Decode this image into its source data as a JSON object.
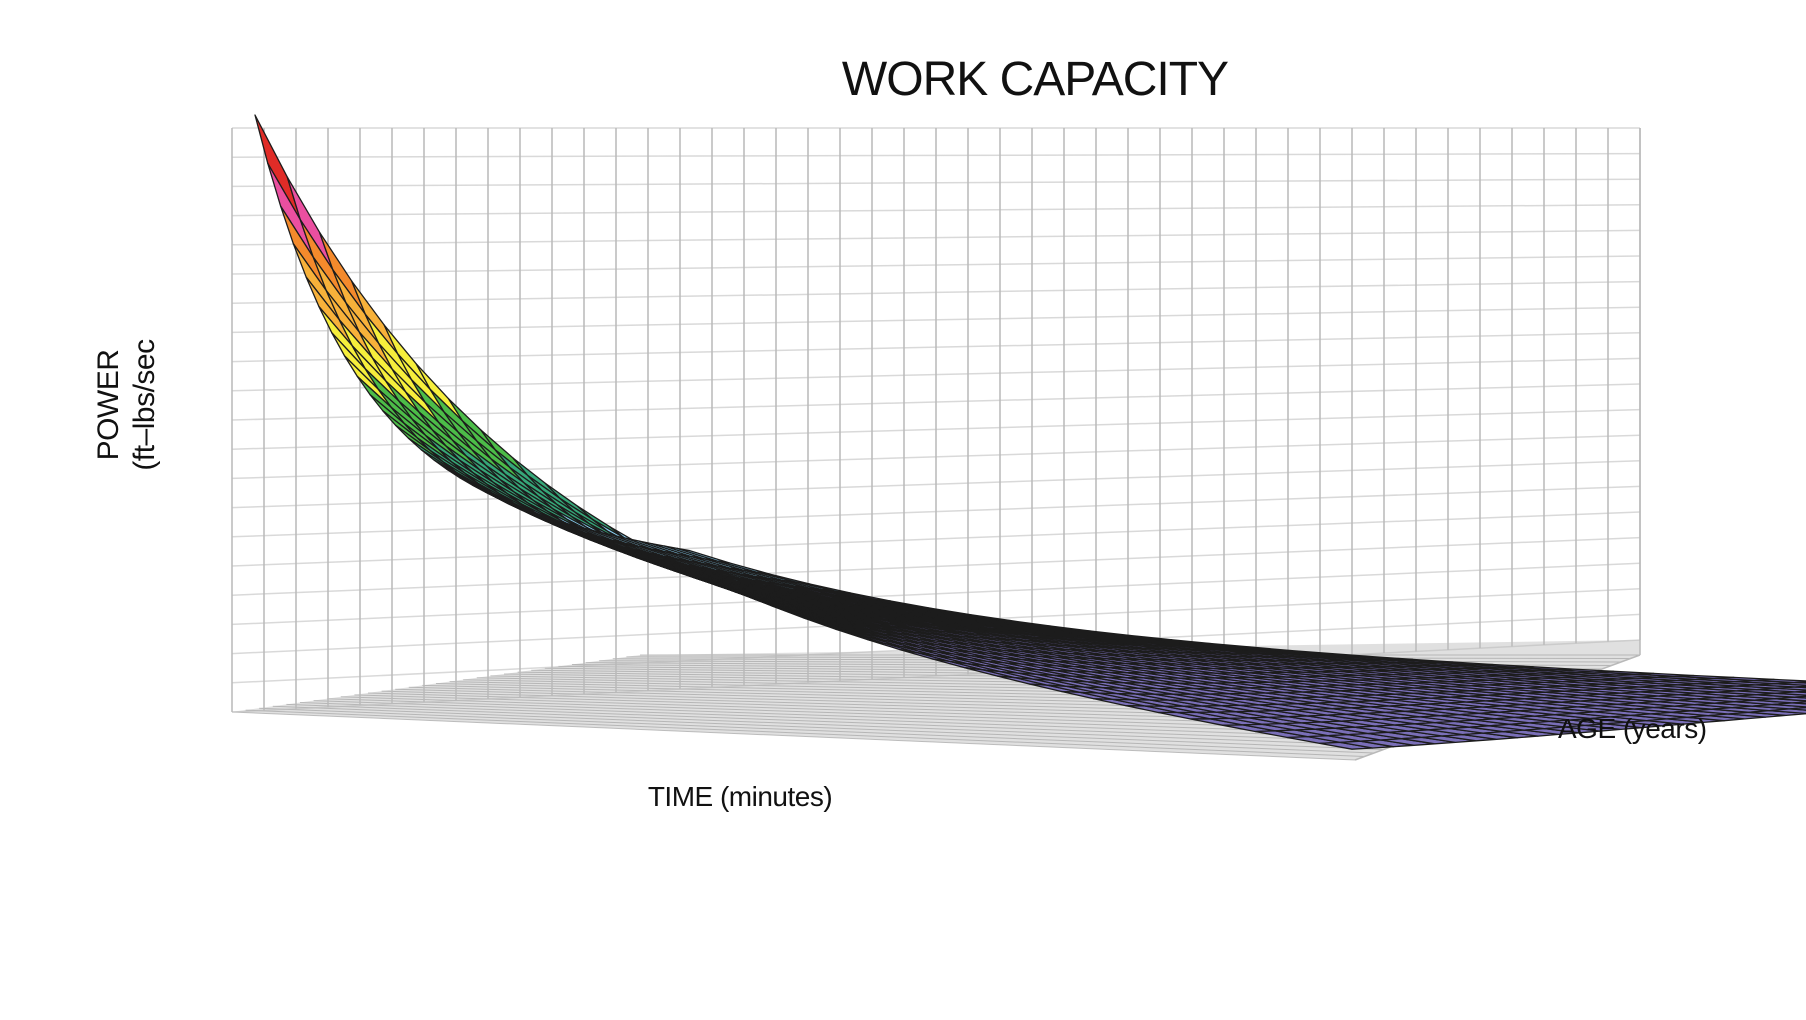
{
  "chart_data": {
    "type": "surface",
    "title": "WORK CAPACITY",
    "xlabel": "TIME (minutes)",
    "zlabel": "AGE (years)",
    "ylabel": "POWER",
    "ylabel_unit": "(ft–lbs/sec",
    "grid": true,
    "color_bands_bottom_to_top": [
      "#7a6fb8",
      "#87cdee",
      "#36a779",
      "#4cbc48",
      "#f6ee3c",
      "#f7b13a",
      "#f48a2c",
      "#ea4fa0",
      "#e02c27"
    ],
    "wall_color": "#b9b9b9",
    "floor_color": "#c7c7c7",
    "mesh_color": "#1c1c1c"
  }
}
